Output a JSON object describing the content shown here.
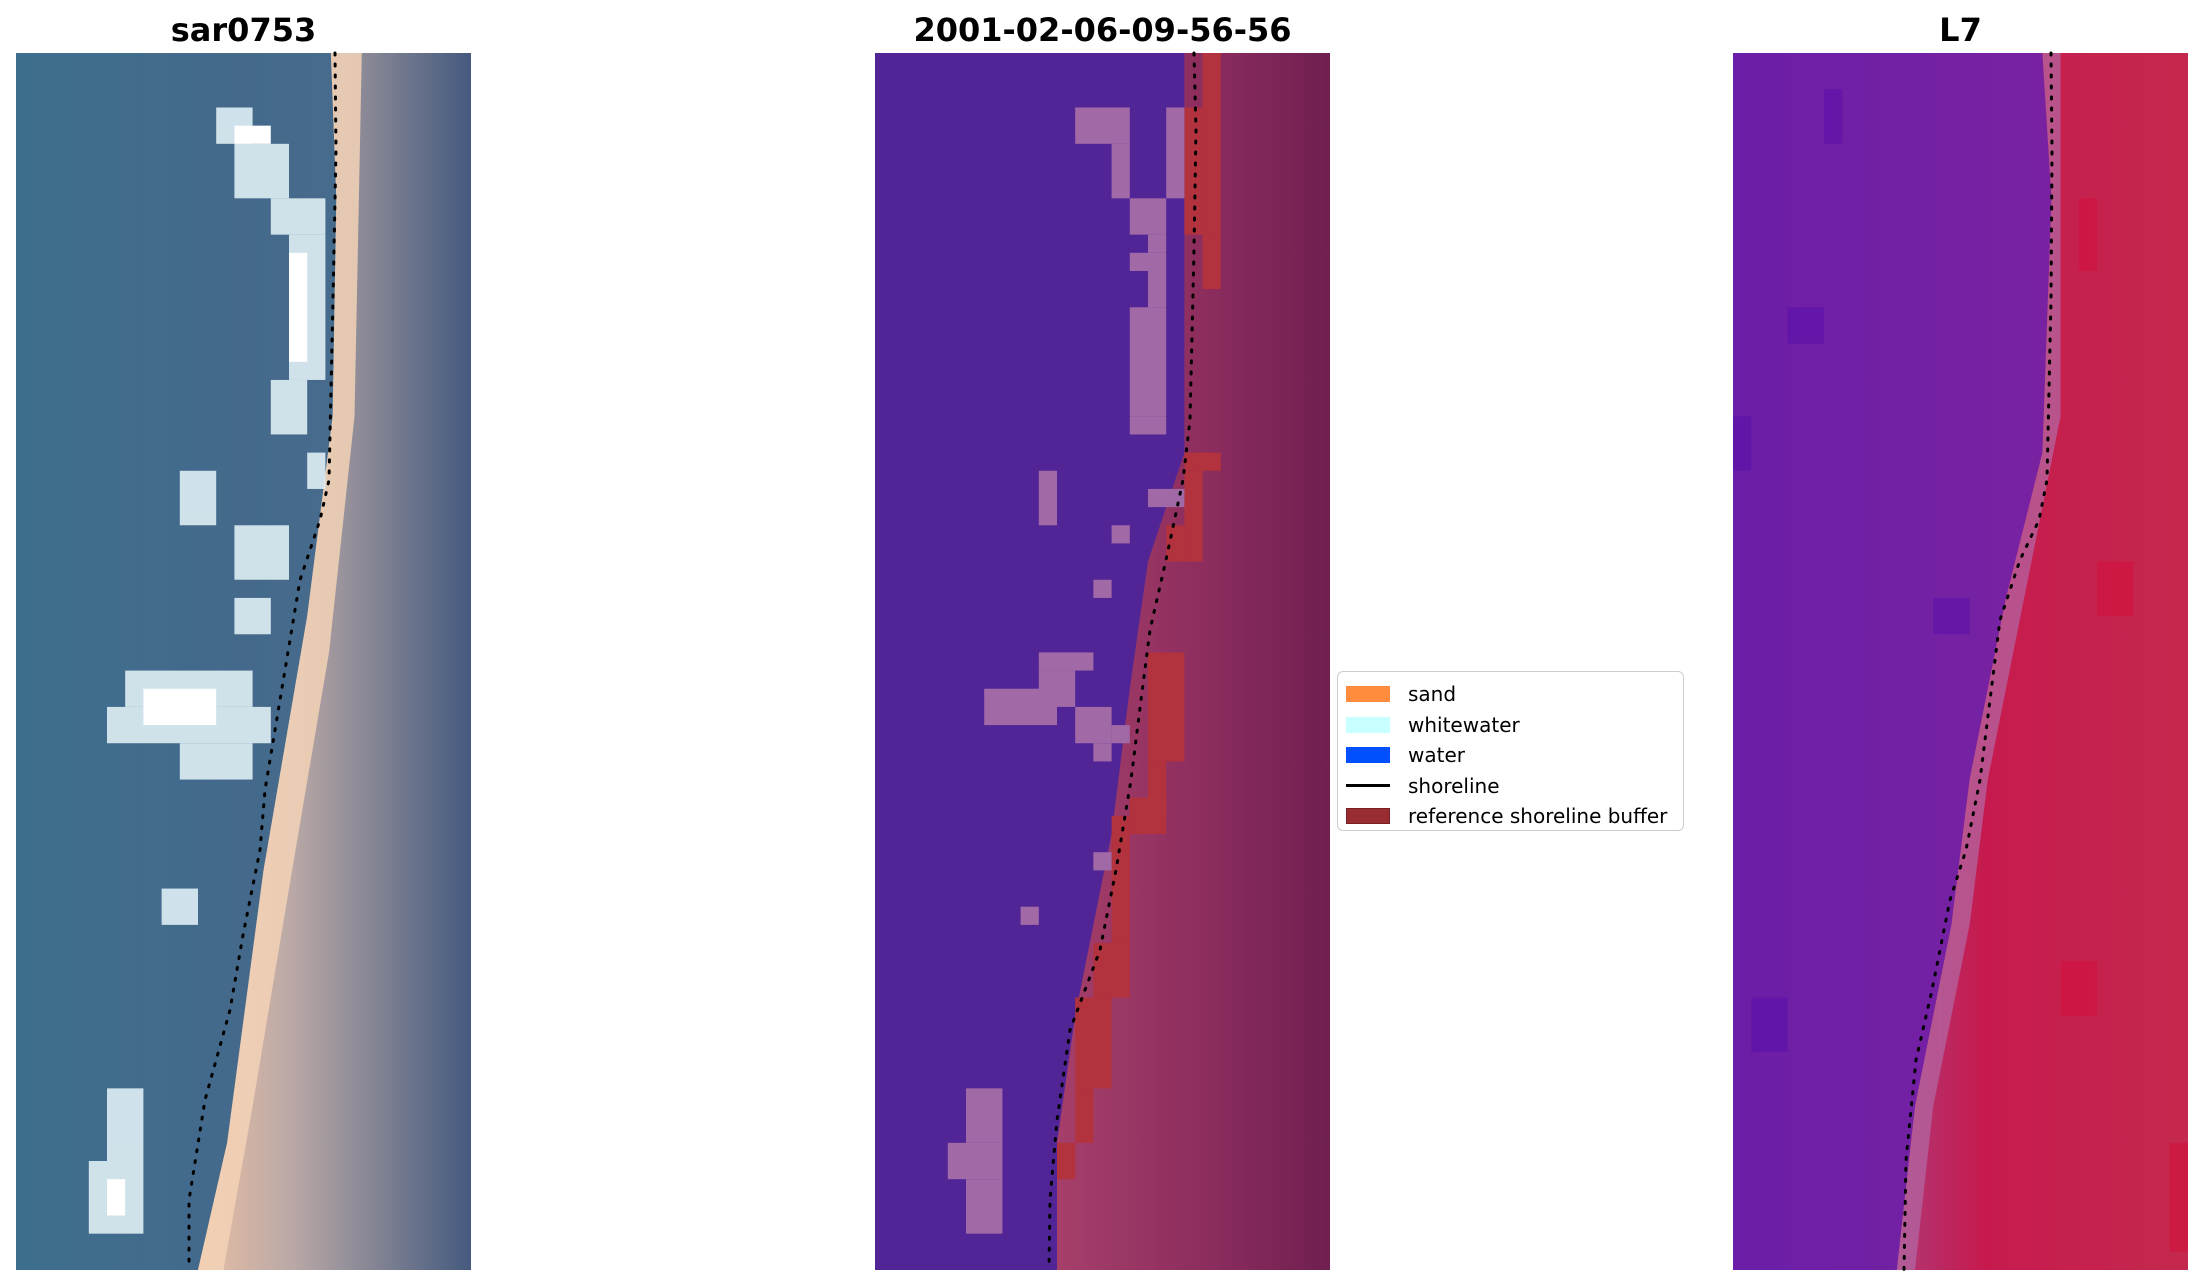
{
  "panels": {
    "rgb": {
      "title": "sar0753"
    },
    "classification": {
      "title": "2001-02-06-09-56-56"
    },
    "index": {
      "title": "L7"
    }
  },
  "legend": {
    "items": [
      {
        "label": "sand",
        "type": "patch",
        "color": "#ff8c3c"
      },
      {
        "label": "whitewater",
        "type": "patch",
        "color": "#c8ffff"
      },
      {
        "label": "water",
        "type": "patch",
        "color": "#0050ff"
      },
      {
        "label": "shoreline",
        "type": "line",
        "color": "#000000"
      },
      {
        "label": "reference shoreline buffer",
        "type": "patch",
        "color": "#992e32"
      }
    ]
  },
  "colors": {
    "class_water_fill": "#522597",
    "class_whitewater_fill": "#a16aa6",
    "class_reference_buffer_fill": "#b2323e",
    "rgb_water": "#41698c",
    "rgb_sand": "#f0c8a8",
    "index_low": "#6e1ea6",
    "index_high": "#c8154e"
  }
}
